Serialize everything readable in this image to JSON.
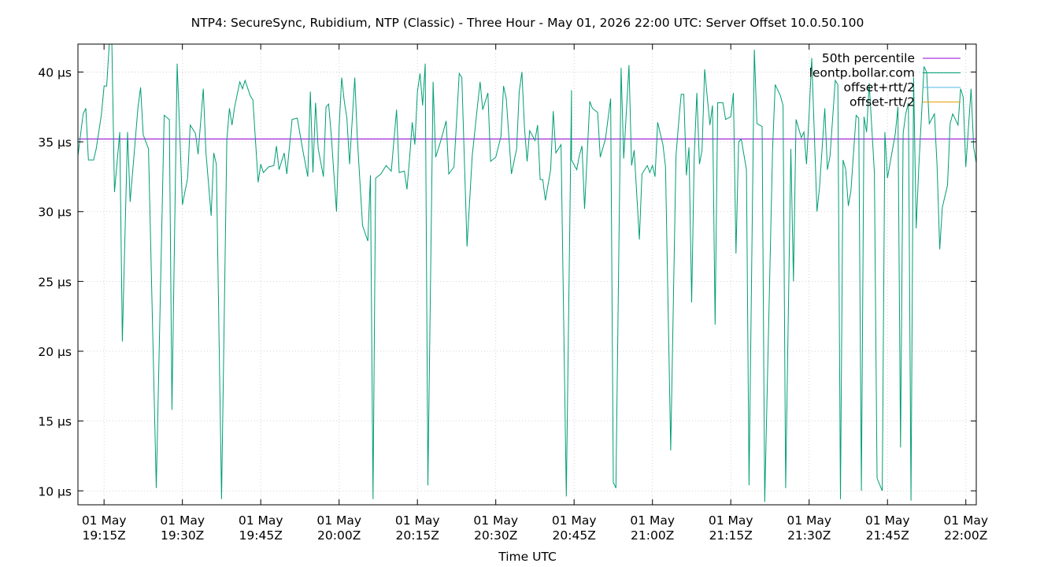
{
  "chart_data": {
    "type": "line",
    "title": "NTP4: SecureSync, Rubidium, NTP (Classic) - Three Hour - May 01, 2026 22:00 UTC: Server Offset 10.0.50.100",
    "xlabel": "Time UTC",
    "ylabel": "",
    "x_range_minutes_utc": [
      "19:10",
      "22:02"
    ],
    "ylim": [
      9,
      42
    ],
    "grid": true,
    "legend_position": "top-right",
    "x_ticks": [
      {
        "date": "01 May",
        "time": "19:15Z",
        "at": "19:15"
      },
      {
        "date": "01 May",
        "time": "19:30Z",
        "at": "19:30"
      },
      {
        "date": "01 May",
        "time": "19:45Z",
        "at": "19:45"
      },
      {
        "date": "01 May",
        "time": "20:00Z",
        "at": "20:00"
      },
      {
        "date": "01 May",
        "time": "20:15Z",
        "at": "20:15"
      },
      {
        "date": "01 May",
        "time": "20:30Z",
        "at": "20:30"
      },
      {
        "date": "01 May",
        "time": "20:45Z",
        "at": "20:45"
      },
      {
        "date": "01 May",
        "time": "21:00Z",
        "at": "21:00"
      },
      {
        "date": "01 May",
        "time": "21:15Z",
        "at": "21:15"
      },
      {
        "date": "01 May",
        "time": "21:30Z",
        "at": "21:30"
      },
      {
        "date": "01 May",
        "time": "21:45Z",
        "at": "21:45"
      },
      {
        "date": "01 May",
        "time": "22:00Z",
        "at": "22:00"
      }
    ],
    "y_ticks": [
      {
        "value": 10,
        "label": "10 µs"
      },
      {
        "value": 15,
        "label": "15 µs"
      },
      {
        "value": 20,
        "label": "20 µs"
      },
      {
        "value": 25,
        "label": "25 µs"
      },
      {
        "value": 30,
        "label": "30 µs"
      },
      {
        "value": 35,
        "label": "35 µs"
      },
      {
        "value": 40,
        "label": "40 µs"
      }
    ],
    "legend": [
      {
        "name": "50th percentile",
        "color": "#9400d3"
      },
      {
        "name": "leontp.bollar.com",
        "color": "#009e73"
      },
      {
        "name": "offset+rtt/2",
        "color": "#56b4e9"
      },
      {
        "name": "offset-rtt/2",
        "color": "#e69f00"
      }
    ],
    "series": [
      {
        "name": "50th percentile",
        "color": "#9400d3",
        "values": [
          [
            0,
            35.2
          ],
          [
            172,
            35.2
          ]
        ]
      },
      {
        "name": "leontp.bollar.com",
        "color": "#009e73",
        "values": [
          [
            0,
            34.0
          ],
          [
            0.5,
            35.5
          ],
          [
            1,
            37.0
          ],
          [
            1.5,
            37.4
          ],
          [
            2,
            33.7
          ],
          [
            3,
            33.7
          ],
          [
            3.5,
            34.5
          ],
          [
            4.5,
            37.0
          ],
          [
            5,
            39.0
          ],
          [
            5.5,
            39.0
          ],
          [
            6,
            42.0
          ],
          [
            6.5,
            42.0
          ],
          [
            7,
            31.4
          ],
          [
            8,
            35.7
          ],
          [
            8.5,
            20.7
          ],
          [
            9.5,
            35.7
          ],
          [
            10,
            30.7
          ],
          [
            10.5,
            33.0
          ],
          [
            11.5,
            37.5
          ],
          [
            12,
            38.9
          ],
          [
            12.5,
            35.5
          ],
          [
            13.5,
            34.5
          ],
          [
            15,
            10.2
          ],
          [
            16.5,
            36.9
          ],
          [
            17.5,
            36.6
          ],
          [
            18,
            15.8
          ],
          [
            19,
            40.6
          ],
          [
            20,
            30.5
          ],
          [
            21,
            32.4
          ],
          [
            21.5,
            36.2
          ],
          [
            22.5,
            35.6
          ],
          [
            23,
            34.1
          ],
          [
            24,
            38.8
          ],
          [
            24.5,
            34.3
          ],
          [
            25.5,
            29.7
          ],
          [
            26,
            34.2
          ],
          [
            26.5,
            33.4
          ],
          [
            27.5,
            9.4
          ],
          [
            28.5,
            35.1
          ],
          [
            29,
            37.4
          ],
          [
            29.5,
            36.2
          ],
          [
            30,
            37.5
          ],
          [
            31,
            39.3
          ],
          [
            31.5,
            38.8
          ],
          [
            32,
            39.4
          ],
          [
            33,
            38.3
          ],
          [
            33.5,
            38.0
          ],
          [
            34.5,
            32.1
          ],
          [
            35,
            33.4
          ],
          [
            35.5,
            32.8
          ],
          [
            36.5,
            33.2
          ],
          [
            37.5,
            33.3
          ],
          [
            38,
            34.7
          ],
          [
            38.5,
            33.0
          ],
          [
            39.5,
            34.2
          ],
          [
            40,
            32.7
          ],
          [
            41,
            36.6
          ],
          [
            42,
            36.7
          ],
          [
            43,
            34.5
          ],
          [
            44,
            32.5
          ],
          [
            44.5,
            38.6
          ],
          [
            45,
            32.8
          ],
          [
            45.5,
            37.8
          ],
          [
            46,
            34.5
          ],
          [
            47,
            32.5
          ],
          [
            47.5,
            37.5
          ],
          [
            48,
            37.7
          ],
          [
            48.5,
            35.5
          ],
          [
            49.5,
            30.0
          ],
          [
            50,
            36.0
          ],
          [
            50.5,
            39.6
          ],
          [
            51,
            37.9
          ],
          [
            51.5,
            36.7
          ],
          [
            52,
            33.4
          ],
          [
            53,
            39.6
          ],
          [
            53.5,
            35.2
          ],
          [
            54.5,
            29.0
          ],
          [
            55.5,
            27.9
          ],
          [
            56,
            32.6
          ],
          [
            56.5,
            9.4
          ],
          [
            57,
            32.4
          ],
          [
            58,
            32.7
          ],
          [
            59,
            33.3
          ],
          [
            60,
            32.9
          ],
          [
            61,
            37.3
          ],
          [
            61.5,
            32.8
          ],
          [
            62.5,
            32.9
          ],
          [
            63,
            31.6
          ],
          [
            63.5,
            33.8
          ],
          [
            64,
            36.4
          ],
          [
            64.5,
            34.8
          ],
          [
            65,
            38.6
          ],
          [
            65.5,
            39.9
          ],
          [
            66,
            37.6
          ],
          [
            66.5,
            40.6
          ],
          [
            67,
            10.4
          ],
          [
            68,
            39.3
          ],
          [
            68.5,
            33.9
          ],
          [
            69.5,
            35.1
          ],
          [
            70.5,
            36.5
          ],
          [
            71,
            32.7
          ],
          [
            72,
            33.2
          ],
          [
            73,
            39.9
          ],
          [
            73.5,
            39.6
          ],
          [
            74.5,
            27.5
          ],
          [
            75.5,
            34.0
          ],
          [
            76.5,
            37.6
          ],
          [
            77,
            39.3
          ],
          [
            77.5,
            37.3
          ],
          [
            78.5,
            38.5
          ],
          [
            79,
            33.6
          ],
          [
            80,
            33.9
          ],
          [
            81,
            35.4
          ],
          [
            81.5,
            39.0
          ],
          [
            82,
            38.1
          ],
          [
            83,
            32.7
          ],
          [
            84,
            34.5
          ],
          [
            84.5,
            38.6
          ],
          [
            85,
            40.0
          ],
          [
            85.5,
            36.0
          ],
          [
            86,
            33.6
          ],
          [
            86.5,
            35.8
          ],
          [
            87.5,
            35.1
          ],
          [
            88,
            36.2
          ],
          [
            88.5,
            32.3
          ],
          [
            89,
            32.3
          ],
          [
            89.5,
            30.8
          ],
          [
            90.5,
            33.0
          ],
          [
            91,
            37.2
          ],
          [
            91.5,
            34.2
          ],
          [
            92.5,
            34.8
          ],
          [
            93.5,
            9.6
          ],
          [
            94.5,
            38.7
          ],
          [
            94.5,
            33.7
          ],
          [
            95.5,
            33.0
          ],
          [
            96,
            34.0
          ],
          [
            96.5,
            34.7
          ],
          [
            97,
            30.2
          ],
          [
            98,
            37.9
          ],
          [
            98.5,
            37.4
          ],
          [
            99.5,
            37.1
          ],
          [
            100,
            33.9
          ],
          [
            101,
            35.2
          ],
          [
            102,
            38.1
          ],
          [
            102.5,
            10.6
          ],
          [
            103,
            10.2
          ],
          [
            104,
            40.3
          ],
          [
            104.5,
            33.8
          ],
          [
            105.5,
            40.5
          ],
          [
            106,
            33.3
          ],
          [
            106.5,
            34.4
          ],
          [
            107.5,
            28.0
          ],
          [
            108,
            32.7
          ],
          [
            109,
            33.3
          ],
          [
            109.5,
            32.8
          ],
          [
            110,
            33.3
          ],
          [
            110.5,
            32.5
          ],
          [
            111,
            36.4
          ],
          [
            112,
            34.8
          ],
          [
            112.5,
            33.2
          ],
          [
            113.5,
            12.9
          ],
          [
            114.5,
            34.0
          ],
          [
            115,
            36.3
          ],
          [
            115.5,
            38.4
          ],
          [
            116,
            38.4
          ],
          [
            116.5,
            32.6
          ],
          [
            117,
            34.6
          ],
          [
            117.5,
            23.5
          ],
          [
            118,
            34.0
          ],
          [
            118.5,
            38.5
          ],
          [
            119,
            33.4
          ],
          [
            119.5,
            34.4
          ],
          [
            120,
            40.2
          ],
          [
            121,
            36.2
          ],
          [
            121.5,
            37.6
          ],
          [
            122,
            21.9
          ],
          [
            122.5,
            37.8
          ],
          [
            123,
            37.8
          ],
          [
            123.5,
            37.8
          ],
          [
            124,
            36.6
          ],
          [
            125,
            36.8
          ],
          [
            125.5,
            38.5
          ],
          [
            126,
            27.0
          ],
          [
            126.5,
            35.0
          ],
          [
            127,
            35.2
          ],
          [
            128,
            33.0
          ],
          [
            128.5,
            10.4
          ],
          [
            129.5,
            41.6
          ],
          [
            130,
            36.3
          ],
          [
            131,
            36.1
          ],
          [
            131.5,
            9.2
          ],
          [
            133,
            34.5
          ],
          [
            133.5,
            39.1
          ],
          [
            134.5,
            38.3
          ],
          [
            135,
            37.6
          ],
          [
            135.5,
            10.2
          ],
          [
            136.5,
            34.5
          ],
          [
            137,
            25.0
          ],
          [
            137.5,
            36.6
          ],
          [
            138.5,
            35.3
          ],
          [
            139,
            35.7
          ],
          [
            139.5,
            33.4
          ],
          [
            140,
            37.0
          ],
          [
            140.5,
            41.0
          ],
          [
            141.5,
            30.0
          ],
          [
            142,
            31.8
          ],
          [
            143,
            37.4
          ],
          [
            143.5,
            33.0
          ],
          [
            144,
            34.0
          ],
          [
            145,
            39.4
          ],
          [
            145.5,
            39.1
          ],
          [
            146,
            9.4
          ],
          [
            146.5,
            33.7
          ],
          [
            147,
            33.0
          ],
          [
            147.5,
            30.4
          ],
          [
            148,
            31.5
          ],
          [
            149,
            36.9
          ],
          [
            149.5,
            36.7
          ],
          [
            150,
            10.0
          ],
          [
            150.5,
            36.8
          ],
          [
            151,
            35.7
          ],
          [
            151.5,
            39.2
          ],
          [
            152.5,
            32.8
          ],
          [
            153,
            10.9
          ],
          [
            154,
            10.0
          ],
          [
            154.5,
            35.7
          ],
          [
            155,
            32.4
          ],
          [
            156.5,
            35.6
          ],
          [
            157,
            37.5
          ],
          [
            157.5,
            13.1
          ],
          [
            158,
            35.6
          ],
          [
            158.5,
            37.0
          ],
          [
            159,
            37.8
          ],
          [
            159.5,
            9.3
          ],
          [
            160,
            39.6
          ],
          [
            160.5,
            28.8
          ],
          [
            161,
            33.2
          ],
          [
            162,
            40.4
          ],
          [
            162.5,
            40.0
          ],
          [
            163,
            36.3
          ],
          [
            164,
            37.0
          ],
          [
            164.5,
            33.3
          ],
          [
            165,
            27.3
          ],
          [
            165.5,
            30.3
          ],
          [
            166.5,
            31.9
          ],
          [
            167,
            36.3
          ],
          [
            167.5,
            37.0
          ],
          [
            168,
            36.6
          ],
          [
            168.5,
            36.2
          ],
          [
            169,
            38.8
          ],
          [
            169.5,
            38.2
          ],
          [
            170,
            33.2
          ],
          [
            171,
            38.8
          ],
          [
            171.5,
            34.6
          ],
          [
            172,
            33.5
          ]
        ]
      },
      {
        "name": "offset+rtt/2",
        "color": "#56b4e9",
        "values": []
      },
      {
        "name": "offset-rtt/2",
        "color": "#e69f00",
        "values": []
      }
    ]
  }
}
